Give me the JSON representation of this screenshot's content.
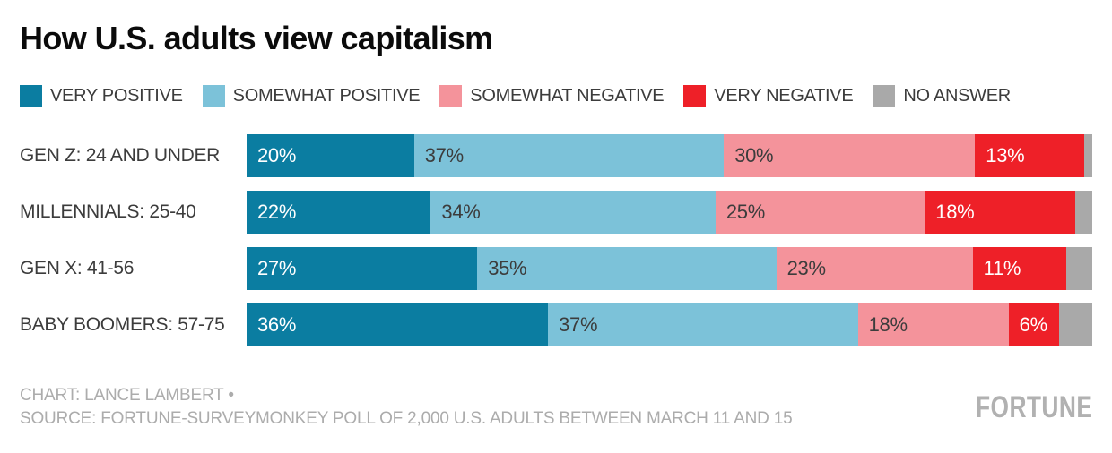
{
  "title": "How U.S. adults view capitalism",
  "footer": {
    "credit": "CHART: LANCE LAMBERT •",
    "source": "SOURCE: FORTUNE-SURVEYMONKEY POLL OF 2,000 U.S. ADULTS BETWEEN MARCH 11 AND 15"
  },
  "brand": {
    "logo_text": "FORTUNE"
  },
  "colors": {
    "very_positive": "#0b7da1",
    "somewhat_positive": "#7cc2d9",
    "somewhat_negative": "#f4939b",
    "very_negative": "#ee2028",
    "no_answer": "#a9a9a9",
    "label_on_light": "#3c3c3c",
    "label_on_dark": "#ffffff",
    "title_text": "#0b0b0b",
    "footer_text": "#acacac"
  },
  "chart_data": {
    "type": "bar",
    "orientation": "horizontal",
    "stacked": true,
    "units": "percent",
    "title": "How U.S. adults view capitalism",
    "xlabel": "",
    "ylabel": "",
    "xlim": [
      0,
      100
    ],
    "grid": false,
    "legend_position": "top",
    "categories": [
      "GEN Z: 24 AND UNDER",
      "MILLENNIALS: 25-40",
      "GEN X: 41-56",
      "BABY BOOMERS: 57-75"
    ],
    "series": [
      {
        "name": "VERY POSITIVE",
        "color_key": "very_positive",
        "values": [
          20,
          22,
          27,
          36
        ],
        "data_labels": [
          "20%",
          "22%",
          "27%",
          "36%"
        ],
        "label_style": "dark_bg"
      },
      {
        "name": "SOMEWHAT POSITIVE",
        "color_key": "somewhat_positive",
        "values": [
          37,
          34,
          35,
          37
        ],
        "data_labels": [
          "37%",
          "34%",
          "35%",
          "37%"
        ],
        "label_style": "light_bg"
      },
      {
        "name": "SOMEWHAT NEGATIVE",
        "color_key": "somewhat_negative",
        "values": [
          30,
          25,
          23,
          18
        ],
        "data_labels": [
          "30%",
          "25%",
          "23%",
          "18%"
        ],
        "label_style": "light_bg"
      },
      {
        "name": "VERY NEGATIVE",
        "color_key": "very_negative",
        "values": [
          13,
          18,
          11,
          6
        ],
        "data_labels": [
          "13%",
          "18%",
          "11%",
          "6%"
        ],
        "label_style": "dark_bg"
      },
      {
        "name": "NO ANSWER",
        "color_key": "no_answer",
        "values": [
          1,
          2,
          3,
          4
        ],
        "data_labels": [
          "",
          "",
          "",
          ""
        ],
        "label_style": "none",
        "note": "unlabeled remainder segment, width estimated from pixels"
      }
    ]
  }
}
